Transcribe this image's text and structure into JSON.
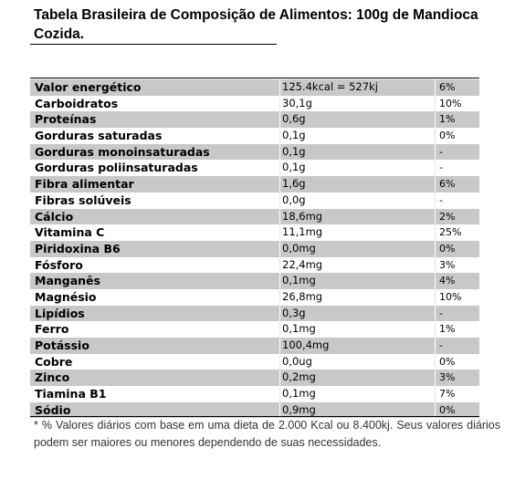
{
  "title": "Tabela Brasileira de Composição de Alimentos: 100g de Mandioca Cozida.",
  "rows": [
    {
      "name": "Valor energético",
      "amount": "125.4kcal = 527kj",
      "dv": "6%"
    },
    {
      "name": "Carboidratos",
      "amount": "30,1g",
      "dv": "10%"
    },
    {
      "name": "Proteínas",
      "amount": "0,6g",
      "dv": "1%"
    },
    {
      "name": "Gorduras saturadas",
      "amount": "0,1g",
      "dv": "0%"
    },
    {
      "name": "Gorduras monoinsaturadas",
      "amount": "0,1g",
      "dv": "-"
    },
    {
      "name": "Gorduras poliinsaturadas",
      "amount": "0,1g",
      "dv": "-"
    },
    {
      "name": "Fibra alimentar",
      "amount": "1,6g",
      "dv": "6%"
    },
    {
      "name": "Fibras solúveis",
      "amount": "0,0g",
      "dv": "-"
    },
    {
      "name": "Cálcio",
      "amount": "18,6mg",
      "dv": "2%"
    },
    {
      "name": "Vitamina C",
      "amount": "11,1mg",
      "dv": "25%"
    },
    {
      "name": "Piridoxina B6",
      "amount": "0,0mg",
      "dv": "0%"
    },
    {
      "name": "Fósforo",
      "amount": "22,4mg",
      "dv": "3%"
    },
    {
      "name": "Manganês",
      "amount": "0,1mg",
      "dv": "4%"
    },
    {
      "name": "Magnésio",
      "amount": "26,8mg",
      "dv": "10%"
    },
    {
      "name": "Lipídios",
      "amount": "0,3g",
      "dv": "-"
    },
    {
      "name": "Ferro",
      "amount": "0,1mg",
      "dv": "1%"
    },
    {
      "name": "Potássio",
      "amount": "100,4mg",
      "dv": "-"
    },
    {
      "name": "Cobre",
      "amount": "0,0ug",
      "dv": "0%"
    },
    {
      "name": "Zinco",
      "amount": "0,2mg",
      "dv": "3%"
    },
    {
      "name": "Tiamina B1",
      "amount": "0,1mg",
      "dv": "7%"
    },
    {
      "name": "Sódio",
      "amount": "0,9mg",
      "dv": "0%"
    }
  ],
  "footnote": "* % Valores diários com base em uma dieta de 2.000 Kcal ou 8.400kj. Seus valores diários podem ser maiores ou menores dependendo de suas necessidades.",
  "colors": {
    "shaded_row": "#c8c8c8",
    "rule": "#000000"
  }
}
